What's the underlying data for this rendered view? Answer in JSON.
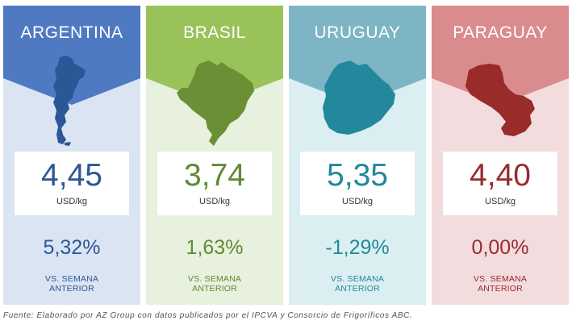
{
  "cards": [
    {
      "country": "ARGENTINA",
      "price": "4,45",
      "unit": "USD/kg",
      "change": "5,32%",
      "vs_line1": "VS. SEMANA",
      "vs_line2": "ANTERIOR",
      "colors": {
        "banner": "#4f7ac2",
        "background": "#dbe4f2",
        "accent": "#2b5796"
      }
    },
    {
      "country": "BRASIL",
      "price": "3,74",
      "unit": "USD/kg",
      "change": "1,63%",
      "vs_line1": "VS. SEMANA",
      "vs_line2": "ANTERIOR",
      "colors": {
        "banner": "#9ac25b",
        "background": "#e8f0de",
        "accent": "#5e8b34"
      }
    },
    {
      "country": "URUGUAY",
      "price": "5,35",
      "unit": "USD/kg",
      "change": "-1,29%",
      "vs_line1": "VS. SEMANA",
      "vs_line2": "ANTERIOR",
      "colors": {
        "banner": "#7db5c5",
        "background": "#dbeef1",
        "accent": "#23889b"
      }
    },
    {
      "country": "PARAGUAY",
      "price": "4,40",
      "unit": "USD/kg",
      "change": "0,00%",
      "vs_line1": "VS. SEMANA",
      "vs_line2": "ANTERIOR",
      "colors": {
        "banner": "#da8b8e",
        "background": "#f2dcde",
        "accent": "#992b2b"
      }
    }
  ],
  "source": "Fuente: Elaborado por AZ Group con datos publicados por el IPCVA y Consorcio de Frigoríficos ABC."
}
